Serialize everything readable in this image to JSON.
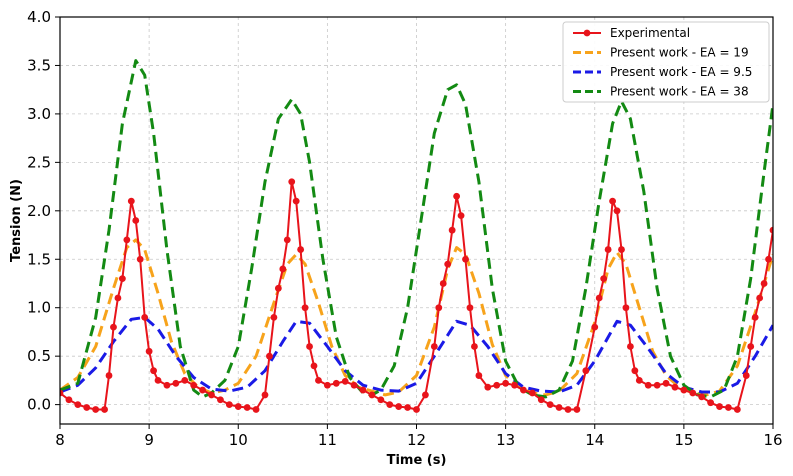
{
  "chart_data": {
    "type": "line",
    "title": "",
    "xlabel": "Time (s)",
    "ylabel": "Tension (N)",
    "xlim": [
      8,
      16
    ],
    "ylim": [
      -0.2,
      4.0
    ],
    "xticks": [
      8,
      9,
      10,
      11,
      12,
      13,
      14,
      15,
      16
    ],
    "yticks": [
      0.0,
      0.5,
      1.0,
      1.5,
      2.0,
      2.5,
      3.0,
      3.5,
      4.0
    ],
    "xtick_labels": [
      "8",
      "9",
      "10",
      "11",
      "12",
      "13",
      "14",
      "15",
      "16"
    ],
    "ytick_labels": [
      "0.0",
      "0.5",
      "1.0",
      "1.5",
      "2.0",
      "2.5",
      "3.0",
      "3.5",
      "4.0"
    ],
    "grid": true,
    "legend_position": "top-right",
    "series": [
      {
        "name": "Experimental",
        "color": "#e8141b",
        "style": "solid-markers",
        "x": [
          8.0,
          8.1,
          8.2,
          8.3,
          8.4,
          8.5,
          8.55,
          8.6,
          8.65,
          8.7,
          8.75,
          8.8,
          8.85,
          8.9,
          8.95,
          9.0,
          9.05,
          9.1,
          9.2,
          9.3,
          9.4,
          9.5,
          9.6,
          9.7,
          9.8,
          9.9,
          10.0,
          10.1,
          10.2,
          10.3,
          10.35,
          10.4,
          10.45,
          10.5,
          10.55,
          10.6,
          10.65,
          10.7,
          10.75,
          10.8,
          10.85,
          10.9,
          11.0,
          11.1,
          11.2,
          11.3,
          11.4,
          11.5,
          11.6,
          11.7,
          11.8,
          11.9,
          12.0,
          12.1,
          12.2,
          12.25,
          12.3,
          12.35,
          12.4,
          12.45,
          12.5,
          12.55,
          12.6,
          12.65,
          12.7,
          12.8,
          12.9,
          13.0,
          13.1,
          13.2,
          13.3,
          13.4,
          13.5,
          13.6,
          13.7,
          13.8,
          13.9,
          14.0,
          14.05,
          14.1,
          14.15,
          14.2,
          14.25,
          14.3,
          14.35,
          14.4,
          14.45,
          14.5,
          14.6,
          14.7,
          14.8,
          14.9,
          15.0,
          15.1,
          15.2,
          15.3,
          15.4,
          15.5,
          15.6,
          15.7,
          15.75,
          15.8,
          15.85,
          15.9,
          15.95,
          16.0
        ],
        "values": [
          0.12,
          0.05,
          0.0,
          -0.03,
          -0.05,
          -0.05,
          0.3,
          0.8,
          1.1,
          1.3,
          1.7,
          2.1,
          1.9,
          1.5,
          0.9,
          0.55,
          0.35,
          0.25,
          0.2,
          0.22,
          0.25,
          0.2,
          0.15,
          0.1,
          0.05,
          0.0,
          -0.02,
          -0.03,
          -0.05,
          0.1,
          0.5,
          0.9,
          1.2,
          1.4,
          1.7,
          2.3,
          2.1,
          1.6,
          1.0,
          0.6,
          0.4,
          0.25,
          0.2,
          0.22,
          0.24,
          0.2,
          0.15,
          0.1,
          0.05,
          0.0,
          -0.02,
          -0.03,
          -0.05,
          0.1,
          0.6,
          1.0,
          1.25,
          1.45,
          1.8,
          2.15,
          1.95,
          1.5,
          1.0,
          0.6,
          0.3,
          0.18,
          0.2,
          0.22,
          0.2,
          0.15,
          0.12,
          0.05,
          0.0,
          -0.03,
          -0.05,
          -0.05,
          0.35,
          0.8,
          1.1,
          1.3,
          1.6,
          2.1,
          2.0,
          1.6,
          1.0,
          0.6,
          0.35,
          0.25,
          0.2,
          0.2,
          0.22,
          0.18,
          0.15,
          0.12,
          0.08,
          0.02,
          -0.02,
          -0.03,
          -0.05,
          0.3,
          0.6,
          0.9,
          1.1,
          1.25,
          1.5,
          1.8
        ]
      },
      {
        "name": "Present work - EA = 19",
        "color": "#f7a31b",
        "style": "dashed",
        "x": [
          8.0,
          8.2,
          8.4,
          8.6,
          8.75,
          8.85,
          8.95,
          9.1,
          9.25,
          9.4,
          9.55,
          9.7,
          9.85,
          10.0,
          10.2,
          10.4,
          10.55,
          10.65,
          10.75,
          10.9,
          11.05,
          11.2,
          11.35,
          11.5,
          11.65,
          11.8,
          12.0,
          12.2,
          12.35,
          12.45,
          12.55,
          12.7,
          12.85,
          13.0,
          13.15,
          13.3,
          13.45,
          13.6,
          13.8,
          14.0,
          14.15,
          14.25,
          14.35,
          14.5,
          14.65,
          14.8,
          14.95,
          15.1,
          15.25,
          15.4,
          15.6,
          15.8,
          16.0
        ],
        "values": [
          0.15,
          0.28,
          0.6,
          1.2,
          1.62,
          1.7,
          1.6,
          1.15,
          0.65,
          0.32,
          0.18,
          0.12,
          0.15,
          0.22,
          0.5,
          1.05,
          1.45,
          1.55,
          1.45,
          1.05,
          0.6,
          0.3,
          0.18,
          0.14,
          0.1,
          0.13,
          0.3,
          0.8,
          1.4,
          1.62,
          1.55,
          1.15,
          0.62,
          0.3,
          0.18,
          0.12,
          0.1,
          0.14,
          0.32,
          0.85,
          1.4,
          1.57,
          1.45,
          1.0,
          0.55,
          0.3,
          0.18,
          0.12,
          0.1,
          0.14,
          0.4,
          0.95,
          1.55
        ]
      },
      {
        "name": "Present work - EA = 9.5",
        "color": "#1a1ae6",
        "style": "dashed",
        "x": [
          8.0,
          8.2,
          8.4,
          8.6,
          8.8,
          8.95,
          9.1,
          9.3,
          9.5,
          9.7,
          9.9,
          10.1,
          10.3,
          10.5,
          10.65,
          10.8,
          11.0,
          11.2,
          11.4,
          11.6,
          11.8,
          12.0,
          12.2,
          12.45,
          12.6,
          12.8,
          13.0,
          13.2,
          13.4,
          13.6,
          13.8,
          14.0,
          14.25,
          14.4,
          14.6,
          14.8,
          15.0,
          15.2,
          15.4,
          15.6,
          15.8,
          16.0
        ],
        "values": [
          0.13,
          0.2,
          0.38,
          0.65,
          0.88,
          0.9,
          0.78,
          0.5,
          0.28,
          0.16,
          0.14,
          0.18,
          0.35,
          0.65,
          0.86,
          0.84,
          0.6,
          0.35,
          0.2,
          0.15,
          0.14,
          0.22,
          0.5,
          0.86,
          0.82,
          0.6,
          0.32,
          0.18,
          0.14,
          0.13,
          0.2,
          0.45,
          0.86,
          0.82,
          0.58,
          0.32,
          0.18,
          0.13,
          0.13,
          0.22,
          0.5,
          0.82
        ]
      },
      {
        "name": "Present work - EA = 38",
        "color": "#138a13",
        "style": "dashed",
        "x": [
          8.0,
          8.2,
          8.4,
          8.55,
          8.7,
          8.85,
          8.95,
          9.05,
          9.2,
          9.35,
          9.5,
          9.6,
          9.7,
          9.85,
          10.0,
          10.15,
          10.3,
          10.45,
          10.6,
          10.7,
          10.8,
          10.95,
          11.1,
          11.25,
          11.4,
          11.5,
          11.6,
          11.75,
          11.9,
          12.05,
          12.2,
          12.35,
          12.45,
          12.55,
          12.7,
          12.85,
          13.0,
          13.15,
          13.3,
          13.45,
          13.6,
          13.75,
          13.9,
          14.05,
          14.2,
          14.3,
          14.4,
          14.55,
          14.7,
          14.85,
          15.0,
          15.15,
          15.3,
          15.45,
          15.6,
          15.75,
          15.9,
          16.0
        ],
        "values": [
          0.15,
          0.22,
          0.9,
          1.8,
          2.9,
          3.55,
          3.4,
          2.8,
          1.6,
          0.6,
          0.15,
          0.08,
          0.12,
          0.25,
          0.6,
          1.4,
          2.3,
          2.95,
          3.15,
          3.0,
          2.5,
          1.5,
          0.7,
          0.28,
          0.12,
          0.1,
          0.15,
          0.4,
          1.0,
          1.9,
          2.8,
          3.25,
          3.3,
          3.1,
          2.3,
          1.2,
          0.45,
          0.18,
          0.1,
          0.08,
          0.15,
          0.45,
          1.2,
          2.1,
          2.9,
          3.13,
          2.95,
          2.2,
          1.2,
          0.5,
          0.2,
          0.1,
          0.08,
          0.15,
          0.5,
          1.3,
          2.4,
          3.1
        ]
      }
    ]
  }
}
